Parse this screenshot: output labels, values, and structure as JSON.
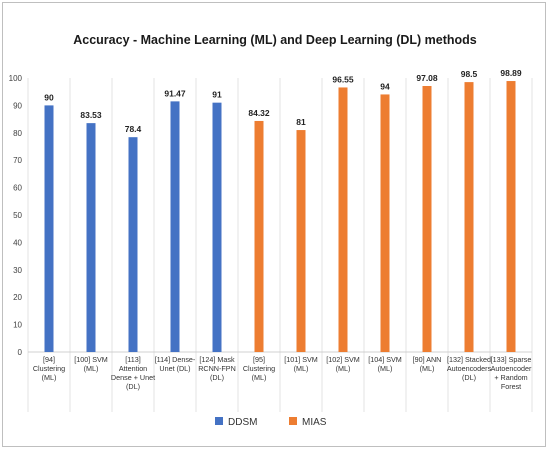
{
  "chart_data": {
    "type": "bar",
    "title": "Accuracy - Machine Learning (ML) and Deep Learning (DL) methods",
    "xlabel": "",
    "ylabel": "",
    "ylim": [
      0,
      100
    ],
    "yticks": [
      0,
      10,
      20,
      30,
      40,
      50,
      60,
      70,
      80,
      90,
      100
    ],
    "grid": "vertical separators",
    "legend_position": "bottom",
    "categories": [
      [
        "[94]",
        "Clustering",
        "(ML)"
      ],
      [
        "[100] SVM",
        "(ML)"
      ],
      [
        "[113]",
        "Attention",
        "Dense + Unet",
        "(DL)"
      ],
      [
        "[114] Dense-",
        "Unet (DL)"
      ],
      [
        "[124] Mask",
        "RCNN-FPN",
        "(DL)"
      ],
      [
        "[95]",
        "Clustering",
        "(ML)"
      ],
      [
        "[101] SVM",
        "(ML)"
      ],
      [
        "[102] SVM",
        "(ML)"
      ],
      [
        "[104] SVM",
        "(ML)"
      ],
      [
        "[90] ANN",
        "(ML)"
      ],
      [
        "[132] Stacked",
        "Autoencoders",
        "(DL)"
      ],
      [
        "[133] Sparse",
        "Autoencoder",
        "+ Random",
        "Forest"
      ]
    ],
    "series": [
      {
        "name": "DDSM",
        "color": "#4472C4",
        "values": [
          90,
          83.53,
          78.4,
          91.47,
          91,
          null,
          null,
          null,
          null,
          null,
          null,
          null
        ]
      },
      {
        "name": "MIAS",
        "color": "#ED7D31",
        "values": [
          null,
          null,
          null,
          null,
          null,
          84.32,
          81,
          96.55,
          94,
          97.08,
          98.5,
          98.89
        ]
      }
    ],
    "data_labels": [
      "90",
      "83.53",
      "78.4",
      "91.47",
      "91",
      "84.32",
      "81",
      "96.55",
      "94",
      "97.08",
      "98.5",
      "98.89"
    ]
  }
}
